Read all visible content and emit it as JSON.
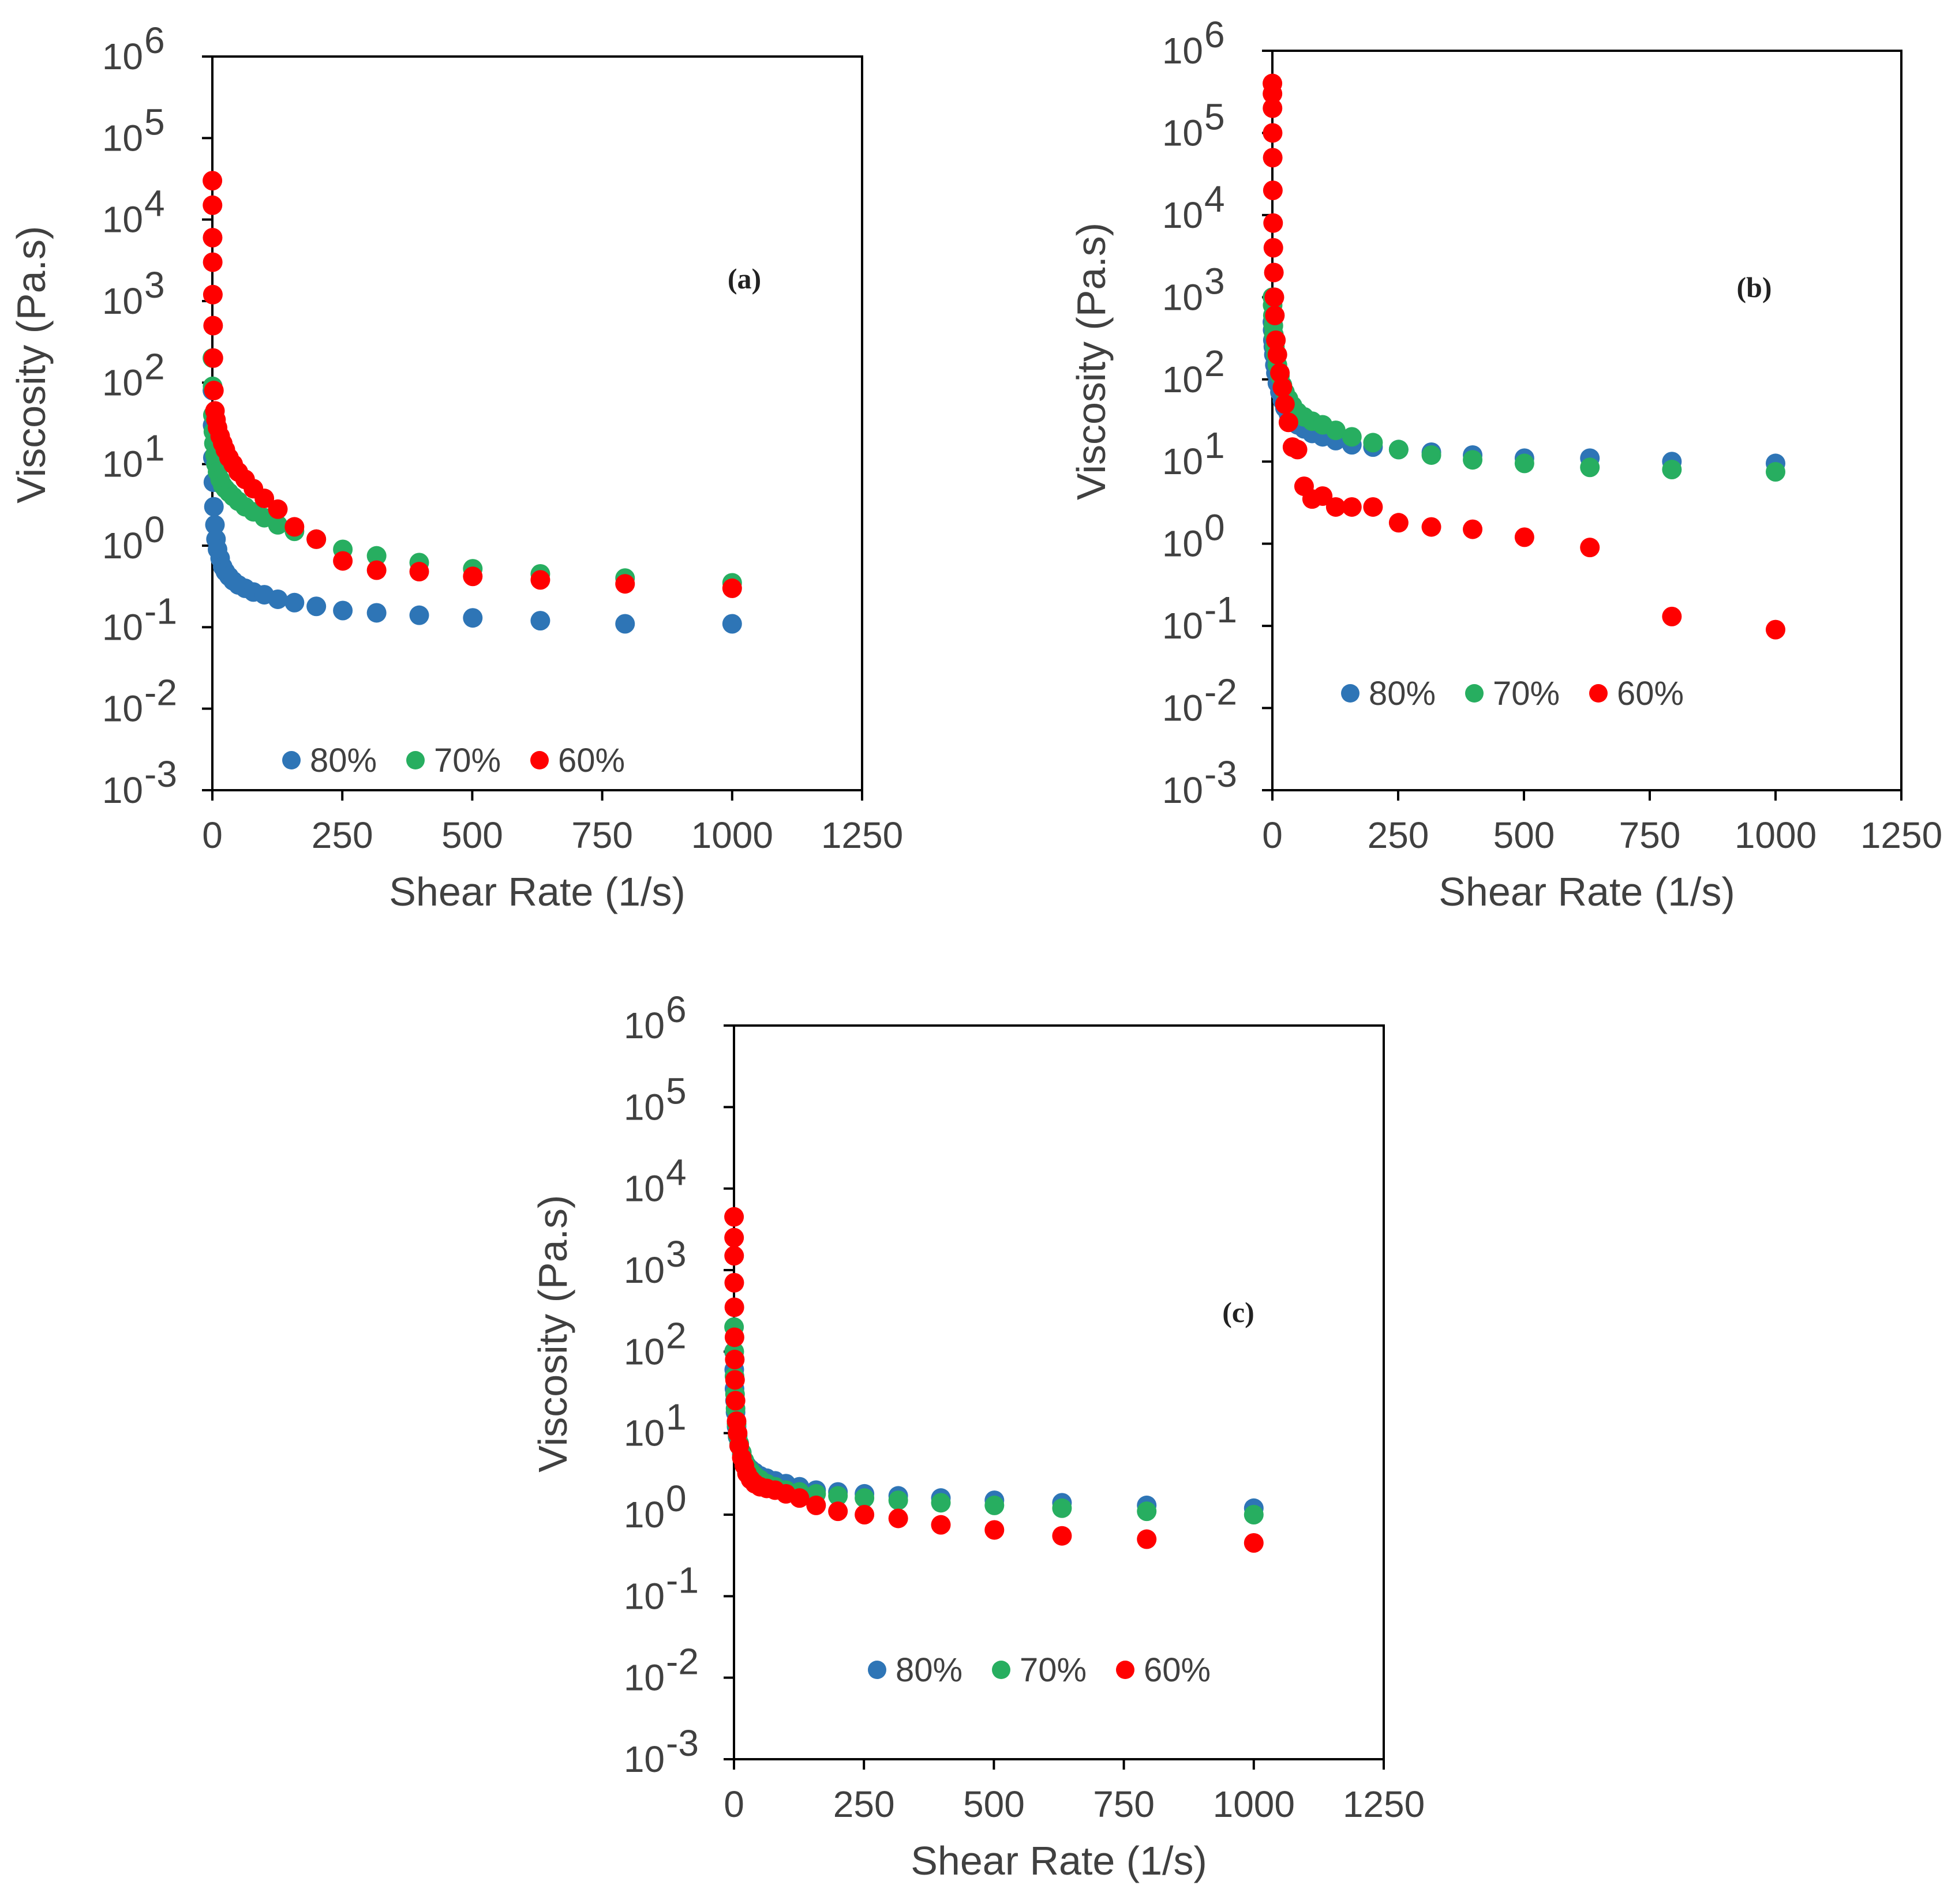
{
  "colors": {
    "80%": "#2E75B6",
    "70%": "#27AE60",
    "60%": "#FF0000",
    "axis": "#000000"
  },
  "chart_data": [
    {
      "type": "scatter",
      "panel_label": "(a)",
      "xlabel": "Shear Rate (1/s)",
      "ylabel": "Viscosity (Pa.s)",
      "y_scale": "log",
      "xlim": [
        0,
        1250
      ],
      "ylim_exponents": [
        -3,
        6
      ],
      "x_ticks": [
        "0",
        "250",
        "500",
        "750",
        "1000",
        "1250"
      ],
      "y_ticks": [
        "10",
        "10",
        "10",
        "10",
        "10",
        "10",
        "10",
        "10",
        "10",
        "10"
      ],
      "y_tick_exponents": [
        "-3",
        "-2",
        "-1",
        "0",
        "1",
        "2",
        "3",
        "4",
        "5",
        "6"
      ],
      "legend": [
        "80%",
        "70%",
        "60%"
      ],
      "series": [
        {
          "name": "80%",
          "x": [
            0.1,
            0.5,
            1,
            2,
            3,
            5,
            7,
            10,
            15,
            20,
            25,
            32,
            40,
            50,
            63,
            79,
            100,
            126,
            158,
            200,
            251,
            316,
            398,
            501,
            631,
            794,
            1000
          ],
          "y": [
            80,
            30,
            12,
            6,
            3,
            1.8,
            1.2,
            0.9,
            0.7,
            0.55,
            0.48,
            0.42,
            0.37,
            0.33,
            0.3,
            0.27,
            0.25,
            0.22,
            0.2,
            0.18,
            0.16,
            0.15,
            0.14,
            0.13,
            0.12,
            0.11,
            0.11
          ]
        },
        {
          "name": "70%",
          "x": [
            0.1,
            0.5,
            1,
            2,
            3,
            5,
            7,
            10,
            15,
            20,
            25,
            32,
            40,
            50,
            63,
            79,
            100,
            126,
            158,
            200,
            251,
            316,
            398,
            501,
            631,
            794,
            1000
          ],
          "y": [
            200,
            90,
            40,
            25,
            18,
            13,
            10,
            8,
            6.5,
            5.5,
            5,
            4.5,
            4,
            3.5,
            3,
            2.6,
            2.2,
            1.8,
            1.5,
            1.2,
            0.9,
            0.75,
            0.62,
            0.52,
            0.45,
            0.4,
            0.35
          ]
        },
        {
          "name": "60%",
          "x": [
            0.1,
            0.3,
            0.5,
            0.7,
            1,
            1.5,
            2,
            3,
            5,
            7,
            10,
            15,
            20,
            25,
            32,
            40,
            50,
            63,
            79,
            100,
            126,
            158,
            200,
            251,
            316,
            398,
            501,
            631,
            794,
            1000
          ],
          "y": [
            30000,
            15000,
            6000,
            3000,
            1200,
            500,
            200,
            80,
            45,
            35,
            28,
            22,
            18,
            15,
            12,
            10,
            8,
            6.5,
            5,
            3.8,
            2.8,
            1.7,
            1.2,
            0.65,
            0.5,
            0.48,
            0.42,
            0.38,
            0.34,
            0.3
          ]
        }
      ]
    },
    {
      "type": "scatter",
      "panel_label": "(b)",
      "xlabel": "Shear Rate (1/s)",
      "ylabel": "Viscosity (Pa.s)",
      "y_scale": "log",
      "xlim": [
        0,
        1250
      ],
      "ylim_exponents": [
        -3,
        6
      ],
      "x_ticks": [
        "0",
        "250",
        "500",
        "750",
        "1000",
        "1250"
      ],
      "y_ticks": [
        "10",
        "10",
        "10",
        "10",
        "10",
        "10",
        "10",
        "10",
        "10",
        "10"
      ],
      "y_tick_exponents": [
        "-3",
        "-2",
        "-1",
        "0",
        "1",
        "2",
        "3",
        "4",
        "5",
        "6"
      ],
      "legend": [
        "80%",
        "70%",
        "60%"
      ],
      "series": [
        {
          "name": "80%",
          "x": [
            0.1,
            0.5,
            1,
            2,
            3,
            5,
            7,
            10,
            15,
            20,
            25,
            32,
            40,
            50,
            63,
            79,
            100,
            126,
            158,
            200,
            251,
            316,
            398,
            501,
            631,
            794,
            1000
          ],
          "y": [
            500,
            400,
            300,
            250,
            200,
            150,
            120,
            90,
            70,
            55,
            45,
            38,
            32,
            28,
            25,
            22,
            20,
            18,
            16,
            15,
            14,
            13,
            12,
            11,
            11,
            10,
            9.5
          ]
        },
        {
          "name": "70%",
          "x": [
            0.1,
            0.5,
            1,
            2,
            3,
            5,
            7,
            10,
            15,
            20,
            25,
            32,
            40,
            50,
            63,
            79,
            100,
            126,
            158,
            200,
            251,
            316,
            398,
            501,
            631,
            794,
            1000
          ],
          "y": [
            1000,
            800,
            600,
            450,
            350,
            250,
            200,
            150,
            110,
            85,
            70,
            58,
            48,
            40,
            35,
            31,
            28,
            24,
            20,
            17,
            14,
            12,
            10.5,
            9.5,
            8.5,
            8,
            7.5
          ]
        },
        {
          "name": "60%",
          "x": [
            0.1,
            0.2,
            0.3,
            0.5,
            0.7,
            1,
            1.5,
            2,
            3,
            4,
            5,
            7,
            10,
            15,
            20,
            25,
            32,
            40,
            50,
            63,
            79,
            100,
            126,
            158,
            200,
            251,
            316,
            398,
            501,
            631,
            794,
            1000
          ],
          "y": [
            400000,
            300000,
            200000,
            100000,
            50000,
            20000,
            8000,
            4000,
            2000,
            1000,
            600,
            300,
            200,
            120,
            80,
            50,
            30,
            15,
            14,
            5,
            3.5,
            3.8,
            2.8,
            2.8,
            2.8,
            1.8,
            1.6,
            1.5,
            1.2,
            0.9,
            0.13,
            0.09
          ]
        }
      ]
    },
    {
      "type": "scatter",
      "panel_label": "(c)",
      "xlabel": "Shear Rate (1/s)",
      "ylabel": "Viscosity (Pa.s)",
      "y_scale": "log",
      "xlim": [
        0,
        1250
      ],
      "ylim_exponents": [
        -3,
        6
      ],
      "x_ticks": [
        "0",
        "250",
        "500",
        "750",
        "1000",
        "1250"
      ],
      "y_ticks": [
        "10",
        "10",
        "10",
        "10",
        "10",
        "10",
        "10",
        "10",
        "10",
        "10"
      ],
      "y_tick_exponents": [
        "-3",
        "-2",
        "-1",
        "0",
        "1",
        "2",
        "3",
        "4",
        "5",
        "6"
      ],
      "legend": [
        "80%",
        "70%",
        "60%"
      ],
      "series": [
        {
          "name": "80%",
          "x": [
            0.1,
            0.5,
            1,
            2,
            3,
            5,
            7,
            10,
            15,
            20,
            25,
            32,
            40,
            50,
            63,
            79,
            100,
            126,
            158,
            200,
            251,
            316,
            398,
            501,
            631,
            794,
            1000
          ],
          "y": [
            100,
            60,
            35,
            25,
            18,
            12,
            9,
            7,
            5.5,
            4.5,
            4,
            3.6,
            3.3,
            3,
            2.8,
            2.6,
            2.4,
            2.2,
            2,
            1.9,
            1.8,
            1.7,
            1.6,
            1.5,
            1.4,
            1.3,
            1.2
          ]
        },
        {
          "name": "70%",
          "x": [
            0.1,
            0.5,
            1,
            2,
            3,
            5,
            7,
            10,
            15,
            20,
            25,
            32,
            40,
            50,
            63,
            79,
            100,
            126,
            158,
            200,
            251,
            316,
            398,
            501,
            631,
            794,
            1000
          ],
          "y": [
            200,
            100,
            50,
            30,
            20,
            13,
            9.5,
            7.5,
            5.8,
            4.6,
            3.9,
            3.4,
            3,
            2.7,
            2.4,
            2.2,
            2,
            1.9,
            1.8,
            1.7,
            1.6,
            1.5,
            1.4,
            1.3,
            1.2,
            1.1,
            1
          ]
        },
        {
          "name": "60%",
          "x": [
            0.1,
            0.2,
            0.3,
            0.5,
            0.7,
            1,
            1.5,
            2,
            3,
            5,
            7,
            10,
            15,
            20,
            25,
            32,
            40,
            50,
            63,
            79,
            100,
            126,
            158,
            200,
            251,
            316,
            398,
            501,
            631,
            794,
            1000
          ],
          "y": [
            4500,
            2500,
            1500,
            700,
            350,
            150,
            80,
            45,
            25,
            14,
            10,
            7,
            5,
            4,
            3.2,
            2.7,
            2.4,
            2.2,
            2.1,
            2,
            1.8,
            1.6,
            1.3,
            1.1,
            1,
            0.9,
            0.75,
            0.65,
            0.55,
            0.5,
            0.45
          ]
        }
      ]
    }
  ]
}
